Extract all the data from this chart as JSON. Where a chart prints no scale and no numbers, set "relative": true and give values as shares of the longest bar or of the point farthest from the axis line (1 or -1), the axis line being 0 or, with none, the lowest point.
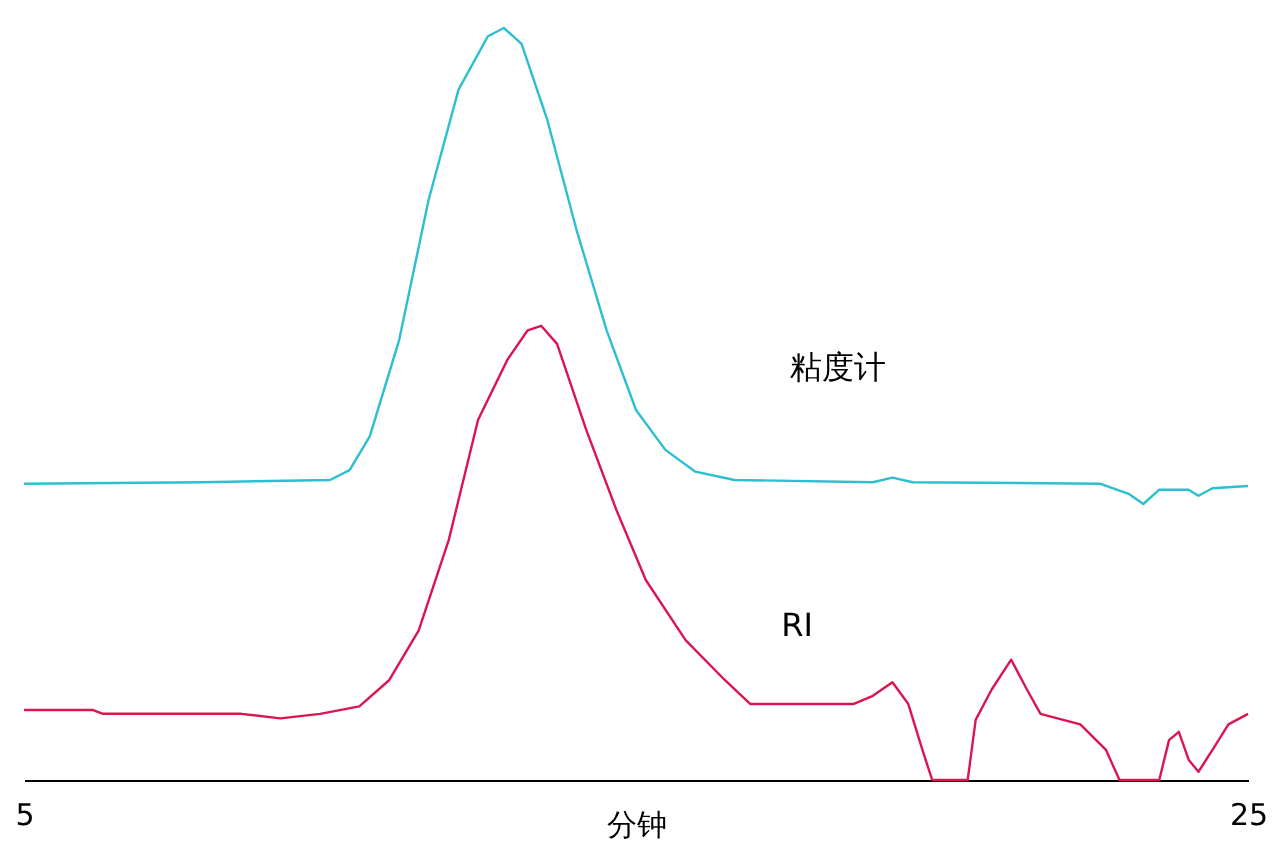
{
  "chart_data": {
    "type": "line",
    "relative": true,
    "xlabel": "分钟",
    "xlim": [
      5,
      25
    ],
    "xticks": [
      5,
      25
    ],
    "grid": false,
    "legend": false,
    "line_style": "solid",
    "marker": "none",
    "series": [
      {
        "name": "粘度计",
        "color": "#2bbfcf",
        "x": [
          5.0,
          7.9,
          10.0,
          10.32,
          10.65,
          11.13,
          11.61,
          12.1,
          12.58,
          12.84,
          13.13,
          13.55,
          14.03,
          14.52,
          15.0,
          15.48,
          15.97,
          16.61,
          18.87,
          19.19,
          19.52,
          22.58,
          23.06,
          23.29,
          23.55,
          24.03,
          24.19,
          24.42,
          25.0
        ],
        "values": [
          0.394,
          0.396,
          0.399,
          0.412,
          0.457,
          0.585,
          0.771,
          0.918,
          0.989,
          1.0,
          0.979,
          0.878,
          0.731,
          0.598,
          0.492,
          0.439,
          0.41,
          0.399,
          0.396,
          0.402,
          0.396,
          0.394,
          0.38,
          0.367,
          0.386,
          0.386,
          0.378,
          0.388,
          0.391
        ]
      },
      {
        "name": "RI",
        "color": "#d9164f",
        "x": [
          5.0,
          6.13,
          6.29,
          8.55,
          9.19,
          9.84,
          10.48,
          10.97,
          11.45,
          11.94,
          12.42,
          12.9,
          13.23,
          13.45,
          13.71,
          14.19,
          14.68,
          15.16,
          15.81,
          16.45,
          16.87,
          17.58,
          18.55,
          18.87,
          19.19,
          19.45,
          19.68,
          19.84,
          20.42,
          20.55,
          20.81,
          21.13,
          21.39,
          21.61,
          22.26,
          22.68,
          22.9,
          23.55,
          23.71,
          23.87,
          24.03,
          24.19,
          24.42,
          24.68,
          25.0
        ],
        "values": [
          0.093,
          0.093,
          0.088,
          0.088,
          0.082,
          0.088,
          0.098,
          0.133,
          0.199,
          0.319,
          0.479,
          0.559,
          0.598,
          0.604,
          0.58,
          0.465,
          0.359,
          0.266,
          0.186,
          0.133,
          0.101,
          0.101,
          0.101,
          0.112,
          0.13,
          0.101,
          0.04,
          0.0,
          0.0,
          0.08,
          0.12,
          0.16,
          0.12,
          0.088,
          0.074,
          0.04,
          0.0,
          0.0,
          0.053,
          0.064,
          0.027,
          0.011,
          0.04,
          0.074,
          0.088
        ]
      }
    ]
  }
}
